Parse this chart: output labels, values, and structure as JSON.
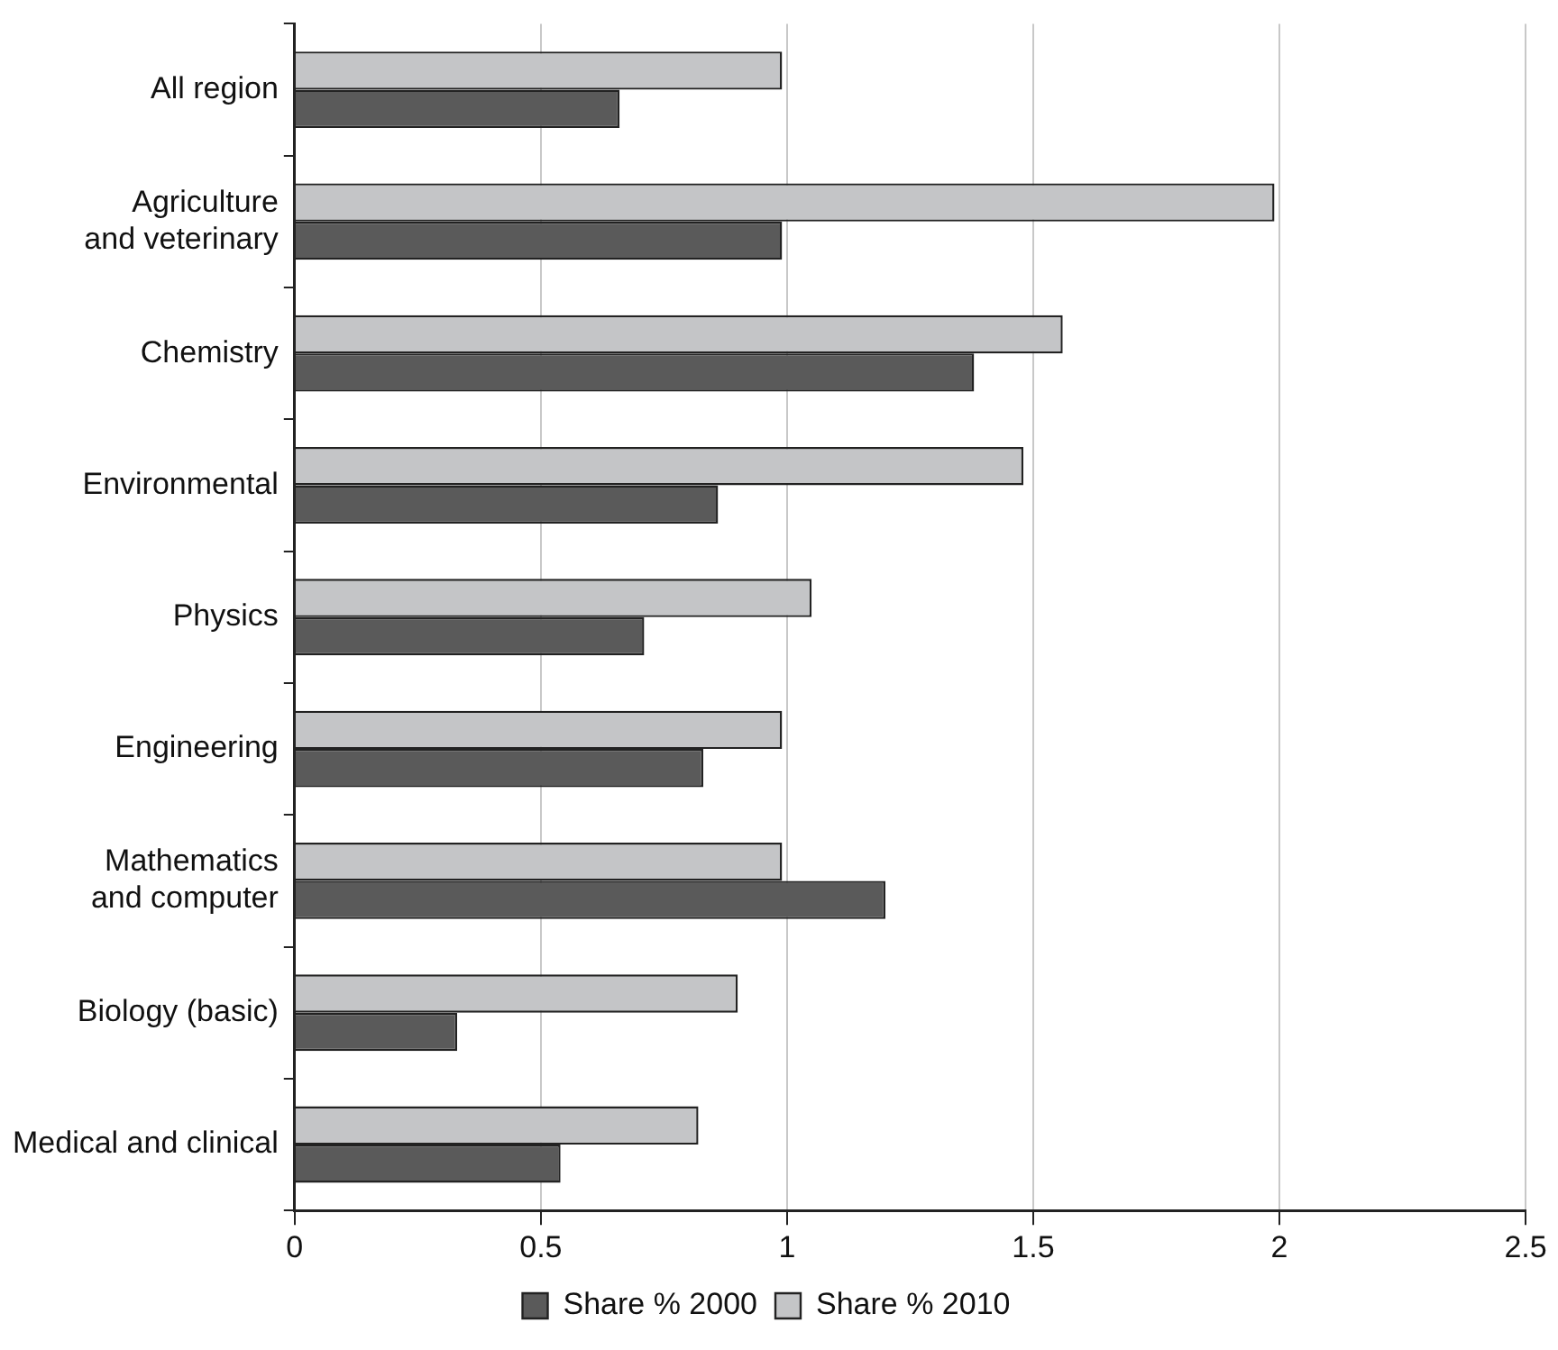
{
  "chart_data": {
    "type": "bar",
    "orientation": "horizontal",
    "categories": [
      "All region",
      "Agriculture and veterinary",
      "Chemistry",
      "Environmental",
      "Physics",
      "Engineering",
      "Mathematics and computer",
      "Biology (basic)",
      "Medical and clinical"
    ],
    "series": [
      {
        "name": "Share % 2000",
        "color": "#5a5a5a",
        "values": [
          0.66,
          0.99,
          1.38,
          0.86,
          0.71,
          0.83,
          1.2,
          0.33,
          0.54
        ]
      },
      {
        "name": "Share % 2010",
        "color": "#c4c5c7",
        "values": [
          0.99,
          1.99,
          1.56,
          1.48,
          1.05,
          0.99,
          0.99,
          0.9,
          0.82
        ]
      }
    ],
    "xlim": [
      0,
      2.5
    ],
    "xticks": [
      0,
      0.5,
      1,
      1.5,
      2,
      2.5
    ],
    "grid": "x",
    "legend": "bottom"
  }
}
